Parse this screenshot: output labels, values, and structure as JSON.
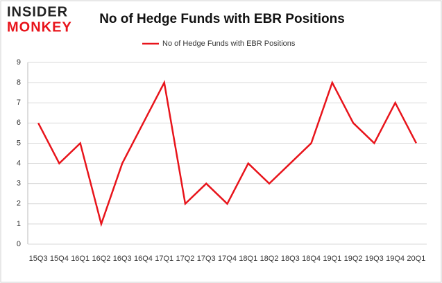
{
  "logo": {
    "line1": "INSIDER",
    "line2": "MONKEY"
  },
  "chart_data": {
    "type": "line",
    "title": "No of Hedge Funds with EBR Positions",
    "categories": [
      "15Q3",
      "15Q4",
      "16Q1",
      "16Q2",
      "16Q3",
      "16Q4",
      "17Q1",
      "17Q2",
      "17Q3",
      "17Q4",
      "18Q1",
      "18Q2",
      "18Q3",
      "18Q4",
      "19Q1",
      "19Q2",
      "19Q3",
      "19Q4",
      "20Q1"
    ],
    "series": [
      {
        "name": "No of Hedge Funds with EBR Positions",
        "color": "#e8141b",
        "values": [
          6,
          4,
          5,
          1,
          4,
          6,
          8,
          2,
          3,
          2,
          4,
          3,
          4,
          5,
          8,
          6,
          5,
          7,
          5
        ]
      }
    ],
    "ylim": [
      0,
      9
    ],
    "yticks": [
      0,
      1,
      2,
      3,
      4,
      5,
      6,
      7,
      8,
      9
    ],
    "grid": true,
    "legend": "top"
  }
}
